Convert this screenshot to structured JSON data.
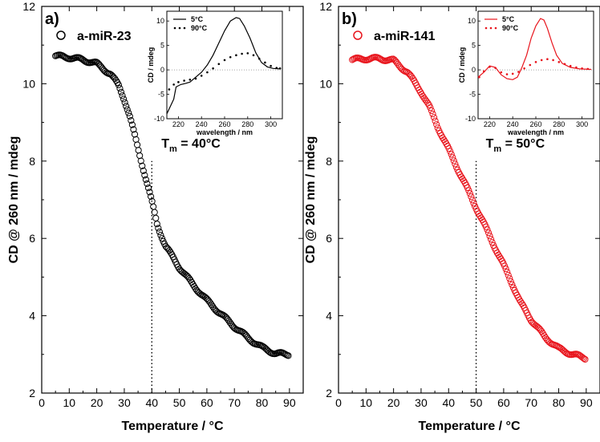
{
  "chart_data": [
    {
      "type": "scatter",
      "panel_label": "a)",
      "legend_label": "a-miR-23",
      "color": "#000000",
      "xlabel": "Temperature / °C",
      "ylabel": "CD @ 260 nm / mdeg",
      "xlim": [
        0,
        95
      ],
      "ylim": [
        2,
        12
      ],
      "xticks": [
        0,
        10,
        20,
        30,
        40,
        50,
        60,
        70,
        80,
        90
      ],
      "yticks": [
        2,
        4,
        6,
        8,
        10,
        12
      ],
      "annotation": {
        "prefix": "T",
        "sub": "m",
        "rest": " = 40°C",
        "tm": 40
      },
      "curve": [
        [
          5,
          10.72
        ],
        [
          10,
          10.68
        ],
        [
          15,
          10.62
        ],
        [
          20,
          10.52
        ],
        [
          25,
          10.25
        ],
        [
          28,
          9.95
        ],
        [
          30,
          9.6
        ],
        [
          32,
          9.15
        ],
        [
          34,
          8.6
        ],
        [
          36,
          8.05
        ],
        [
          38,
          7.5
        ],
        [
          40,
          6.95
        ],
        [
          42,
          6.35
        ],
        [
          45,
          5.8
        ],
        [
          50,
          5.25
        ],
        [
          55,
          4.8
        ],
        [
          60,
          4.4
        ],
        [
          65,
          4.05
        ],
        [
          70,
          3.72
        ],
        [
          75,
          3.42
        ],
        [
          80,
          3.18
        ],
        [
          85,
          3.02
        ],
        [
          90,
          3.0
        ]
      ],
      "inset": {
        "xlabel": "wavelength / nm",
        "ylabel": "CD / mdeg",
        "xlim": [
          210,
          310
        ],
        "ylim": [
          -10,
          12
        ],
        "xticks": [
          220,
          240,
          260,
          280,
          300
        ],
        "yticks": [
          -10,
          -5,
          0,
          5,
          10
        ],
        "series": [
          {
            "name": "5°C",
            "style": "solid",
            "points": [
              [
                210,
                -9
              ],
              [
                213,
                -7.5
              ],
              [
                216,
                -6
              ],
              [
                218,
                -3.5
              ],
              [
                222,
                -3
              ],
              [
                226,
                -2.8
              ],
              [
                230,
                -2.5
              ],
              [
                235,
                -1.5
              ],
              [
                240,
                -0.5
              ],
              [
                245,
                1
              ],
              [
                250,
                3
              ],
              [
                255,
                5.5
              ],
              [
                260,
                8
              ],
              [
                265,
                10
              ],
              [
                270,
                10.7
              ],
              [
                273,
                10.5
              ],
              [
                277,
                9
              ],
              [
                282,
                6.5
              ],
              [
                287,
                3.5
              ],
              [
                292,
                1.5
              ],
              [
                297,
                0.6
              ],
              [
                302,
                0.3
              ],
              [
                308,
                0.2
              ]
            ]
          },
          {
            "name": "90°C",
            "style": "dotted",
            "points": [
              [
                212,
                -4
              ],
              [
                216,
                -3
              ],
              [
                220,
                -2.5
              ],
              [
                225,
                -2.2
              ],
              [
                230,
                -2
              ],
              [
                235,
                -1.8
              ],
              [
                240,
                -1.2
              ],
              [
                245,
                -0.5
              ],
              [
                250,
                0.3
              ],
              [
                255,
                1.2
              ],
              [
                260,
                2
              ],
              [
                265,
                2.6
              ],
              [
                270,
                3
              ],
              [
                275,
                3.3
              ],
              [
                280,
                3.4
              ],
              [
                285,
                3
              ],
              [
                290,
                2.3
              ],
              [
                295,
                1.5
              ],
              [
                300,
                0.8
              ],
              [
                305,
                0.4
              ],
              [
                308,
                0.3
              ]
            ]
          }
        ]
      }
    },
    {
      "type": "scatter",
      "panel_label": "b)",
      "legend_label": "a-miR-141",
      "color": "#e8141c",
      "xlabel": "Temperature / °C",
      "ylabel": "CD @ 260 nm / mdeg",
      "xlim": [
        0,
        95
      ],
      "ylim": [
        2,
        12
      ],
      "xticks": [
        0,
        10,
        20,
        30,
        40,
        50,
        60,
        70,
        80,
        90
      ],
      "yticks": [
        2,
        4,
        6,
        8,
        10,
        12
      ],
      "annotation": {
        "prefix": "T",
        "sub": "m",
        "rest": " = 50°C",
        "tm": 50
      },
      "curve": [
        [
          5,
          10.62
        ],
        [
          10,
          10.65
        ],
        [
          15,
          10.65
        ],
        [
          20,
          10.6
        ],
        [
          25,
          10.3
        ],
        [
          28,
          10.0
        ],
        [
          30,
          9.8
        ],
        [
          33,
          9.4
        ],
        [
          36,
          8.9
        ],
        [
          40,
          8.3
        ],
        [
          44,
          7.7
        ],
        [
          48,
          7.1
        ],
        [
          50,
          6.8
        ],
        [
          52,
          6.5
        ],
        [
          55,
          6.05
        ],
        [
          58,
          5.6
        ],
        [
          60,
          5.3
        ],
        [
          63,
          4.85
        ],
        [
          66,
          4.35
        ],
        [
          70,
          3.9
        ],
        [
          75,
          3.45
        ],
        [
          80,
          3.15
        ],
        [
          85,
          3.0
        ],
        [
          90,
          2.9
        ]
      ],
      "inset": {
        "xlabel": "wavelength / nm",
        "ylabel": "CD / mdeg",
        "xlim": [
          210,
          310
        ],
        "ylim": [
          -10,
          12
        ],
        "xticks": [
          220,
          240,
          260,
          280,
          300
        ],
        "yticks": [
          -10,
          -5,
          0,
          5,
          10
        ],
        "series": [
          {
            "name": "5°C",
            "style": "solid",
            "points": [
              [
                210,
                -1.5
              ],
              [
                215,
                -0.5
              ],
              [
                220,
                0.8
              ],
              [
                225,
                0.5
              ],
              [
                230,
                -1
              ],
              [
                235,
                -1.8
              ],
              [
                240,
                -2
              ],
              [
                244,
                -1.5
              ],
              [
                248,
                0.5
              ],
              [
                252,
                3
              ],
              [
                256,
                6.5
              ],
              [
                260,
                9
              ],
              [
                264,
                10.5
              ],
              [
                267,
                10.2
              ],
              [
                270,
                8.5
              ],
              [
                274,
                5.5
              ],
              [
                278,
                3
              ],
              [
                283,
                1.3
              ],
              [
                290,
                0.5
              ],
              [
                298,
                0.2
              ],
              [
                308,
                0.1
              ]
            ]
          },
          {
            "name": "90°C",
            "style": "dotted",
            "points": [
              [
                211,
                -1.5
              ],
              [
                215,
                -0.3
              ],
              [
                220,
                0.6
              ],
              [
                225,
                0.4
              ],
              [
                230,
                -0.5
              ],
              [
                235,
                -0.9
              ],
              [
                240,
                -0.8
              ],
              [
                245,
                -0.4
              ],
              [
                250,
                0.3
              ],
              [
                255,
                1
              ],
              [
                260,
                1.6
              ],
              [
                265,
                2
              ],
              [
                270,
                2.2
              ],
              [
                275,
                2
              ],
              [
                280,
                1.6
              ],
              [
                285,
                1.2
              ],
              [
                290,
                0.8
              ],
              [
                295,
                0.5
              ],
              [
                300,
                0.3
              ],
              [
                305,
                0.2
              ]
            ]
          }
        ]
      }
    }
  ]
}
